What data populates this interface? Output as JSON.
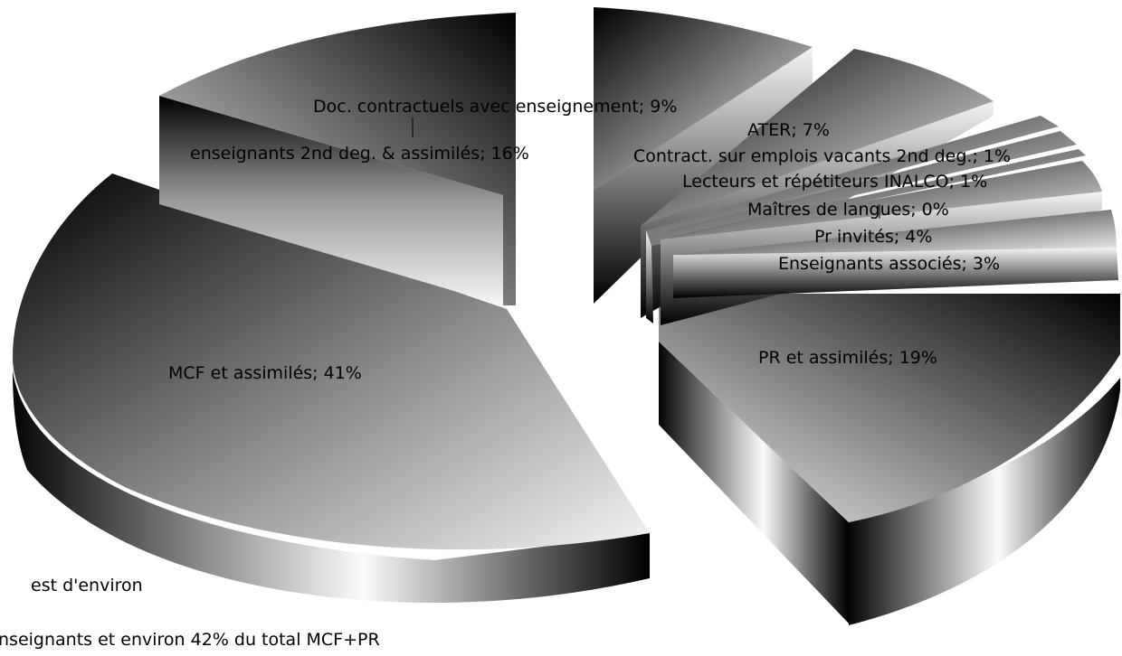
{
  "chart_data": {
    "type": "pie",
    "style": "exploded 3D pie with black-to-white gradient fills",
    "categories": [
      "PR et assimilés",
      "MCF  et assimilés",
      "enseignants 2nd deg. & assimilés",
      "Doc. contractuels avec enseignement",
      "ATER",
      "Contract. sur emplois vacants 2nd deg.",
      "Lecteurs et répétiteurs INALCO",
      "Maîtres de langues",
      "Pr invités",
      "Enseignants associés"
    ],
    "values": [
      19,
      41,
      16,
      9,
      7,
      1,
      1,
      0,
      4,
      3
    ],
    "value_unit": "%",
    "labels": [
      "PR et assimilés; 19%",
      "MCF  et assimilés; 41%",
      "enseignants 2nd deg. & assimilés; 16%",
      "Doc. contractuels avec enseignement; 9%",
      "ATER; 7%",
      "Contract. sur emplois vacants 2nd deg.; 1%",
      "Lecteurs et répétiteurs INALCO; 1%",
      "Maîtres de langues; 0%",
      "Pr invités; 4%",
      "Enseignants associés; 3%"
    ],
    "legend": "none",
    "grid": false
  },
  "notes": [
    "est d'environ",
    "nseignants et environ 42% du total MCF+PR"
  ]
}
